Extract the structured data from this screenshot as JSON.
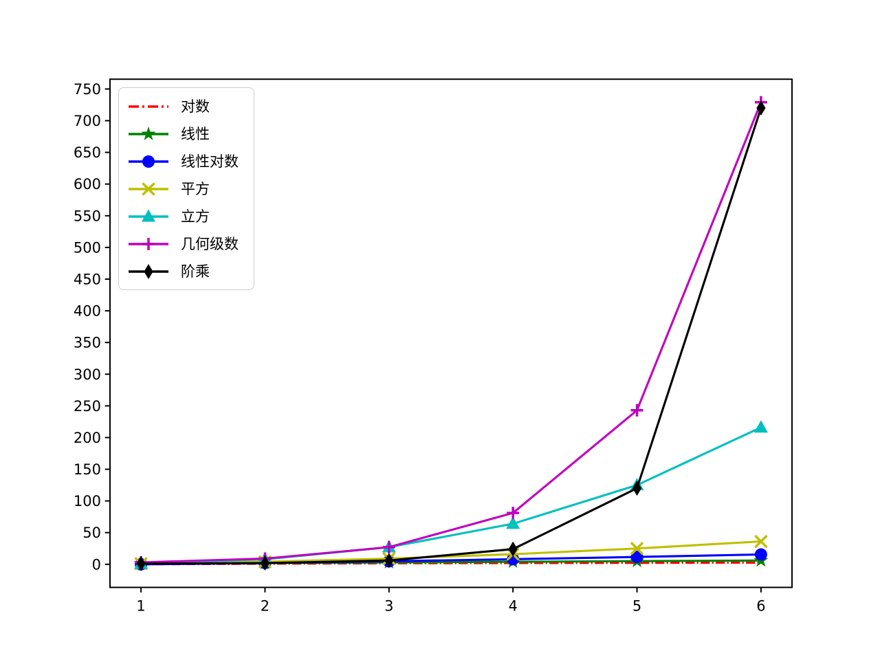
{
  "figure": {
    "background_color": "#ffffff",
    "plot_background_color": "#ffffff",
    "spine_color": "#000000"
  },
  "chart_data": {
    "type": "line",
    "title": "",
    "xlabel": "",
    "ylabel": "",
    "grid": false,
    "legend_position": "upper-left",
    "x": [
      1,
      2,
      3,
      4,
      5,
      6
    ],
    "xticks": [
      "1",
      "2",
      "3",
      "4",
      "5",
      "6"
    ],
    "yticks": [
      "0",
      "50",
      "100",
      "150",
      "200",
      "250",
      "300",
      "350",
      "400",
      "450",
      "500",
      "550",
      "600",
      "650",
      "700",
      "750"
    ],
    "ytick_values": [
      0,
      50,
      100,
      150,
      200,
      250,
      300,
      350,
      400,
      450,
      500,
      550,
      600,
      650,
      700,
      750
    ],
    "xtick_values": [
      1,
      2,
      3,
      4,
      5,
      6
    ],
    "xlim": [
      0.75,
      6.25
    ],
    "ylim": [
      -36.45,
      765.45
    ],
    "series": [
      {
        "key": "log",
        "name": "对数",
        "color": "#ff0000",
        "linestyle": "dashdot",
        "marker": "none",
        "values": [
          0,
          1,
          1.585,
          2,
          2.322,
          2.585
        ]
      },
      {
        "key": "linear",
        "name": "线性",
        "color": "#008000",
        "linestyle": "solid",
        "marker": "star",
        "values": [
          1,
          2,
          3,
          4,
          5,
          6
        ]
      },
      {
        "key": "linearithmic",
        "name": "线性对数",
        "color": "#0000ff",
        "linestyle": "solid",
        "marker": "circle",
        "values": [
          0,
          2,
          4.755,
          8,
          11.61,
          15.51
        ]
      },
      {
        "key": "square",
        "name": "平方",
        "color": "#bfbf00",
        "linestyle": "solid",
        "marker": "x",
        "values": [
          1,
          4,
          9,
          16,
          25,
          36
        ]
      },
      {
        "key": "cubic",
        "name": "立方",
        "color": "#00bfbf",
        "linestyle": "solid",
        "marker": "triangle",
        "values": [
          1,
          8,
          27,
          64,
          125,
          216
        ]
      },
      {
        "key": "geometric",
        "name": "几何级数",
        "color": "#bf00bf",
        "linestyle": "solid",
        "marker": "plus",
        "values": [
          3,
          9,
          27,
          81,
          243,
          729
        ]
      },
      {
        "key": "factorial",
        "name": "阶乘",
        "color": "#000000",
        "linestyle": "solid",
        "marker": "diamond",
        "values": [
          1,
          2,
          6,
          24,
          120,
          720
        ]
      }
    ]
  }
}
